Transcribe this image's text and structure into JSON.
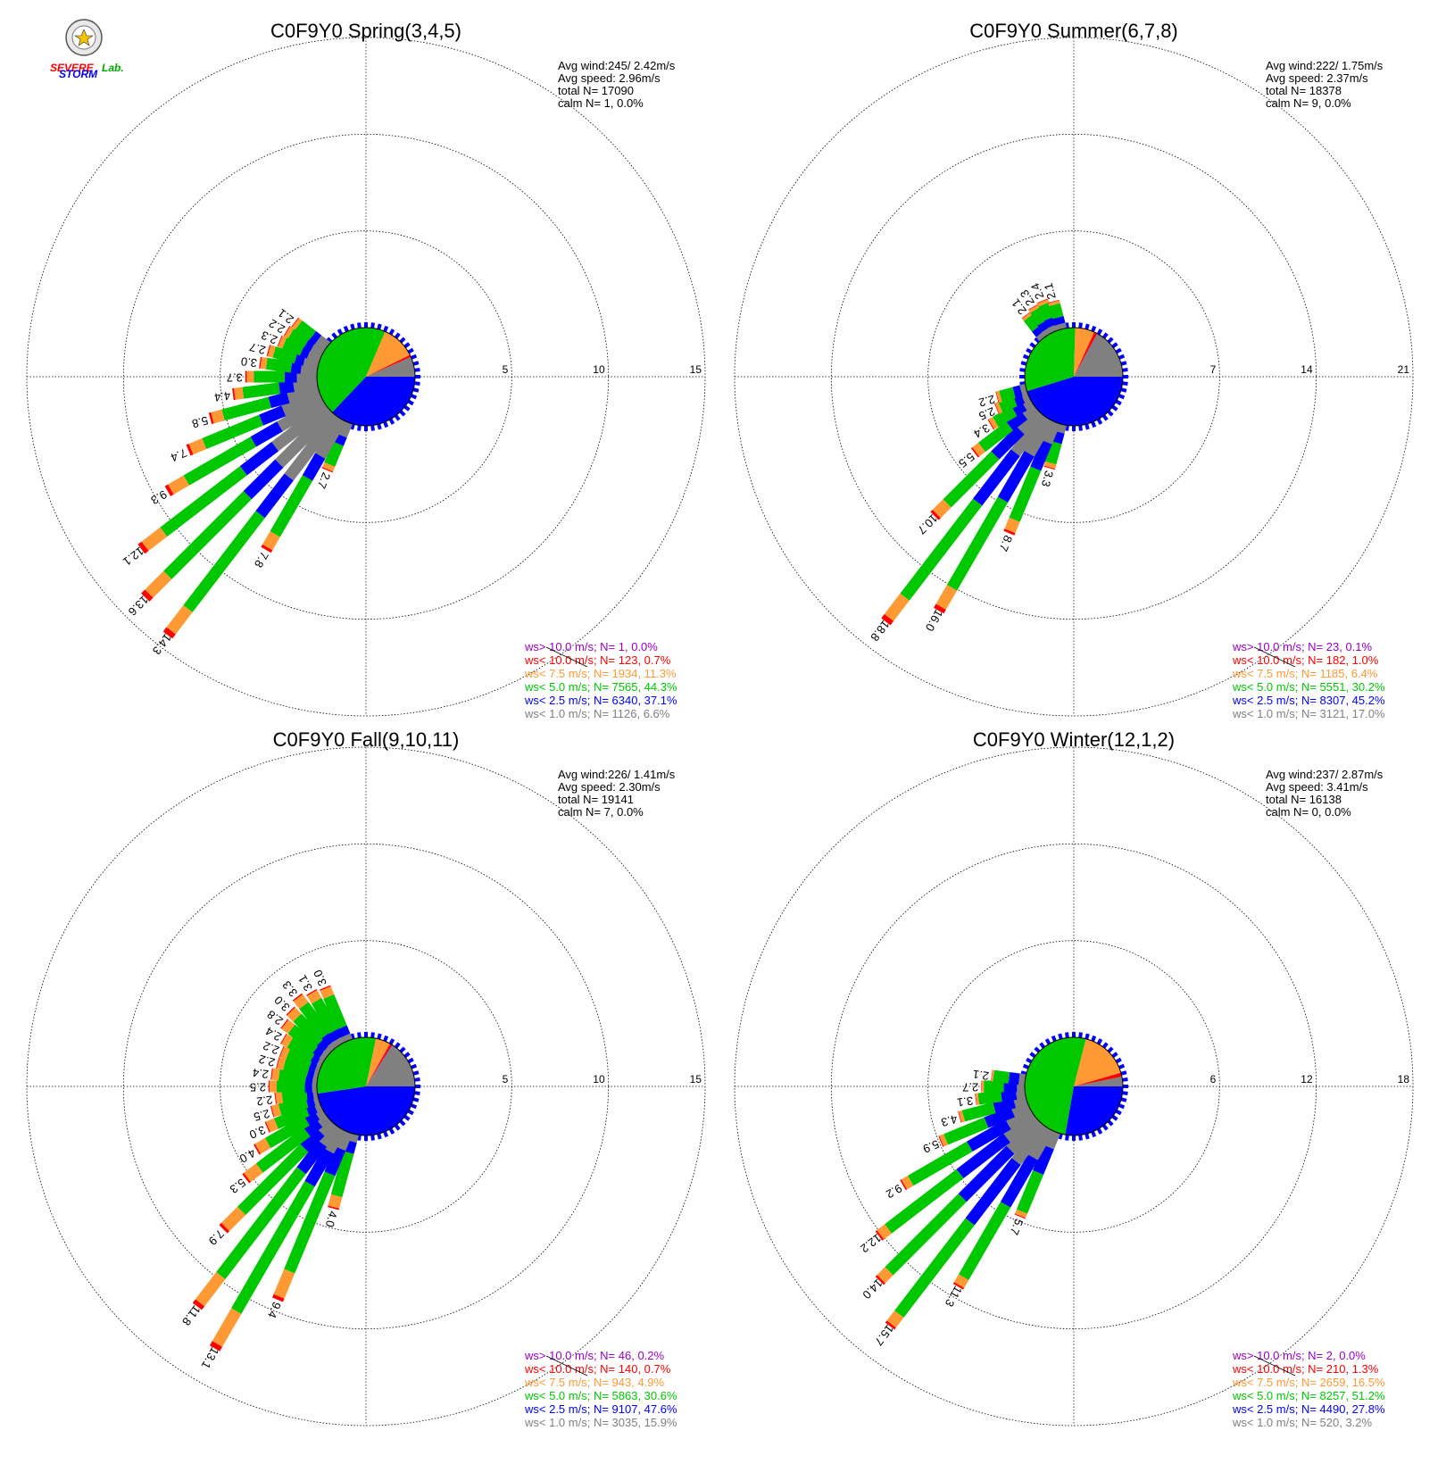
{
  "logo": {
    "text_severe": "SEVERE",
    "text_storm": "STORM",
    "text_lab": "Lab."
  },
  "colors": {
    "grey": "#808080",
    "blue": "#0000ff",
    "green": "#00c800",
    "orange": "#ff9933",
    "red": "#ff0000",
    "purple": "#9900cc"
  },
  "chart_data": [
    {
      "type": "windrose",
      "title": "C0F9Y0 Spring(3,4,5)",
      "rings": [
        5,
        10,
        15
      ],
      "stats": [
        "Avg wind:245/ 2.42m/s",
        "Avg speed: 2.96m/s",
        "total N=      17090",
        "calm N=      1,   0.0%"
      ],
      "pie": [
        6.6,
        37.1,
        44.3,
        11.3,
        0.7,
        0.0
      ],
      "bars": [
        {
          "dir": 202.5,
          "value": 2.7
        },
        {
          "dir": 210,
          "value": 7.8
        },
        {
          "dir": 217.5,
          "value": 14.3
        },
        {
          "dir": 225,
          "value": 13.6
        },
        {
          "dir": 232.5,
          "value": 12.1
        },
        {
          "dir": 240,
          "value": 9.3
        },
        {
          "dir": 247.5,
          "value": 7.4
        },
        {
          "dir": 255,
          "value": 5.8
        },
        {
          "dir": 262.5,
          "value": 4.4
        },
        {
          "dir": 270,
          "value": 3.7
        },
        {
          "dir": 277.5,
          "value": 3.0
        },
        {
          "dir": 285,
          "value": 2.7
        },
        {
          "dir": 292.5,
          "value": 2.3
        },
        {
          "dir": 300,
          "value": 2.2
        },
        {
          "dir": 307.5,
          "value": 2.1
        }
      ],
      "legend": [
        {
          "label": "ws> 10.0 m/s; N=      1,  0.0%",
          "color": "#9900cc"
        },
        {
          "label": "ws< 10.0 m/s; N=   123,  0.7%",
          "color": "#ff0000"
        },
        {
          "label": "ws<  7.5 m/s; N=  1934, 11.3%",
          "color": "#ff9933"
        },
        {
          "label": "ws<  5.0 m/s; N=  7565, 44.3%",
          "color": "#00c800"
        },
        {
          "label": "ws<  2.5 m/s; N=  6340, 37.1%",
          "color": "#0000ff"
        },
        {
          "label": "ws<  1.0 m/s; N=  1126,  6.6%",
          "color": "#808080"
        }
      ]
    },
    {
      "type": "windrose",
      "title": "C0F9Y0 Summer(6,7,8)",
      "rings": [
        7,
        14,
        21
      ],
      "stats": [
        "Avg wind:222/ 1.75m/s",
        "Avg speed: 2.37m/s",
        "total N=      18378",
        "calm N=      9,   0.0%"
      ],
      "pie": [
        17.0,
        45.2,
        30.2,
        6.4,
        1.0,
        0.1
      ],
      "bars": [
        {
          "dir": 195,
          "value": 3.3
        },
        {
          "dir": 202.5,
          "value": 8.7
        },
        {
          "dir": 210,
          "value": 16.0
        },
        {
          "dir": 217.5,
          "value": 18.8
        },
        {
          "dir": 225,
          "value": 10.7
        },
        {
          "dir": 232.5,
          "value": 5.5
        },
        {
          "dir": 240,
          "value": 3.4
        },
        {
          "dir": 247.5,
          "value": 2.5
        },
        {
          "dir": 255,
          "value": 2.2
        },
        {
          "dir": 322.5,
          "value": 2.1
        },
        {
          "dir": 330,
          "value": 2.3
        },
        {
          "dir": 337.5,
          "value": 2.4
        },
        {
          "dir": 345,
          "value": 2.1
        }
      ],
      "legend": [
        {
          "label": "ws> 10.0 m/s; N=     23,  0.1%",
          "color": "#9900cc"
        },
        {
          "label": "ws< 10.0 m/s; N=   182,  1.0%",
          "color": "#ff0000"
        },
        {
          "label": "ws<  7.5 m/s; N=  1185,  6.4%",
          "color": "#ff9933"
        },
        {
          "label": "ws<  5.0 m/s; N=  5551, 30.2%",
          "color": "#00c800"
        },
        {
          "label": "ws<  2.5 m/s; N=  8307, 45.2%",
          "color": "#0000ff"
        },
        {
          "label": "ws<  1.0 m/s; N=  3121, 17.0%",
          "color": "#808080"
        }
      ]
    },
    {
      "type": "windrose",
      "title": "C0F9Y0 Fall(9,10,11)",
      "rings": [
        5,
        10,
        15
      ],
      "stats": [
        "Avg wind:226/ 1.41m/s",
        "Avg speed: 2.30m/s",
        "total N=      19141",
        "calm N=      7,   0.0%"
      ],
      "pie": [
        15.9,
        47.6,
        30.6,
        4.9,
        0.7,
        0.2
      ],
      "bars": [
        {
          "dir": 195,
          "value": 4.0
        },
        {
          "dir": 202.5,
          "value": 9.4
        },
        {
          "dir": 210,
          "value": 13.1
        },
        {
          "dir": 217.5,
          "value": 11.8
        },
        {
          "dir": 225,
          "value": 7.9
        },
        {
          "dir": 232.5,
          "value": 5.3
        },
        {
          "dir": 240,
          "value": 4.0
        },
        {
          "dir": 247.5,
          "value": 3.0
        },
        {
          "dir": 255,
          "value": 2.5
        },
        {
          "dir": 262.5,
          "value": 2.2
        },
        {
          "dir": 270,
          "value": 2.5
        },
        {
          "dir": 277.5,
          "value": 2.4
        },
        {
          "dir": 285,
          "value": 2.2
        },
        {
          "dir": 292.5,
          "value": 2.2
        },
        {
          "dir": 300,
          "value": 2.4
        },
        {
          "dir": 307.5,
          "value": 2.8
        },
        {
          "dir": 315,
          "value": 3.0
        },
        {
          "dir": 322.5,
          "value": 3.3
        },
        {
          "dir": 330,
          "value": 3.1
        },
        {
          "dir": 337.5,
          "value": 3.0
        }
      ],
      "legend": [
        {
          "label": "ws> 10.0 m/s; N=     46,  0.2%",
          "color": "#9900cc"
        },
        {
          "label": "ws< 10.0 m/s; N=   140,  0.7%",
          "color": "#ff0000"
        },
        {
          "label": "ws<  7.5 m/s; N=   943,  4.9%",
          "color": "#ff9933"
        },
        {
          "label": "ws<  5.0 m/s; N=  5863, 30.6%",
          "color": "#00c800"
        },
        {
          "label": "ws<  2.5 m/s; N=  9107, 47.6%",
          "color": "#0000ff"
        },
        {
          "label": "ws<  1.0 m/s; N=  3035, 15.9%",
          "color": "#808080"
        }
      ]
    },
    {
      "type": "windrose",
      "title": "C0F9Y0 Winter(12,1,2)",
      "rings": [
        6,
        12,
        18
      ],
      "stats": [
        "Avg wind:237/ 2.87m/s",
        "Avg speed: 3.41m/s",
        "total N=      16138",
        "calm N=      0,   0.0%"
      ],
      "pie": [
        3.2,
        27.8,
        51.2,
        16.5,
        1.3,
        0.0
      ],
      "bars": [
        {
          "dir": 202.5,
          "value": 5.7
        },
        {
          "dir": 210,
          "value": 11.3
        },
        {
          "dir": 217.5,
          "value": 15.7
        },
        {
          "dir": 225,
          "value": 14.0
        },
        {
          "dir": 232.5,
          "value": 12.2
        },
        {
          "dir": 240,
          "value": 9.2
        },
        {
          "dir": 247.5,
          "value": 5.9
        },
        {
          "dir": 255,
          "value": 4.3
        },
        {
          "dir": 262.5,
          "value": 3.1
        },
        {
          "dir": 270,
          "value": 2.7
        },
        {
          "dir": 277.5,
          "value": 2.1
        }
      ],
      "legend": [
        {
          "label": "ws> 10.0 m/s; N=      2,  0.0%",
          "color": "#9900cc"
        },
        {
          "label": "ws< 10.0 m/s; N=   210,  1.3%",
          "color": "#ff0000"
        },
        {
          "label": "ws<  7.5 m/s; N=  2659, 16.5%",
          "color": "#ff9933"
        },
        {
          "label": "ws<  5.0 m/s; N=  8257, 51.2%",
          "color": "#00c800"
        },
        {
          "label": "ws<  2.5 m/s; N=  4490, 27.8%",
          "color": "#0000ff"
        },
        {
          "label": "ws<  1.0 m/s; N=   520,  3.2%",
          "color": "#808080"
        }
      ]
    }
  ]
}
